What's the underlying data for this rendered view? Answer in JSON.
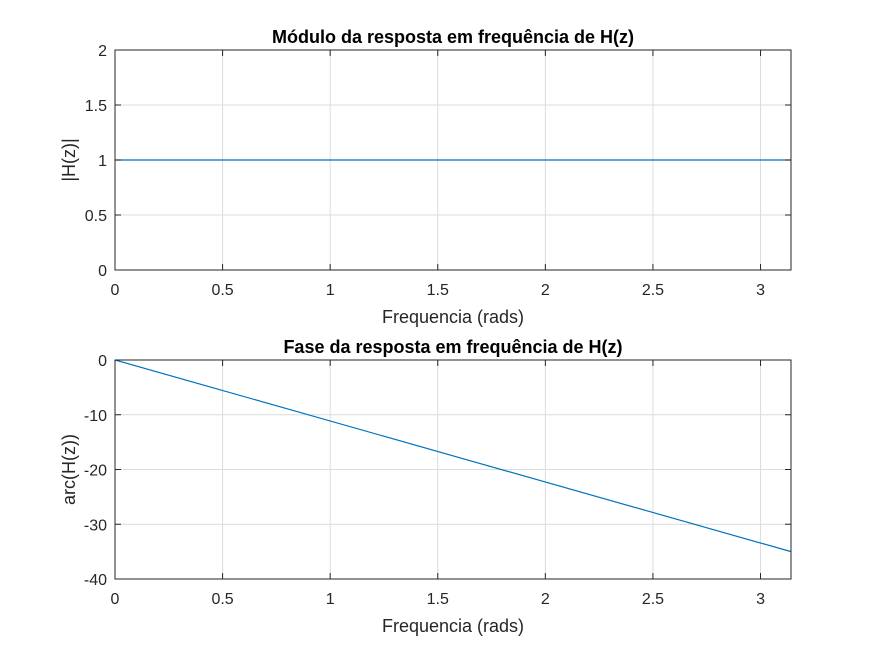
{
  "chart_data": [
    {
      "type": "line",
      "title": "Módulo da resposta em frequência de H(z)",
      "xlabel": "Frequencia (rads)",
      "ylabel": "|H(z)|",
      "xlim": [
        0,
        3.14159
      ],
      "ylim": [
        0,
        2
      ],
      "grid": true,
      "x_ticks": [
        0,
        0.5,
        1,
        1.5,
        2,
        2.5,
        3
      ],
      "x_tick_labels": [
        "0",
        "0.5",
        "1",
        "1.5",
        "2",
        "2.5",
        "3"
      ],
      "y_ticks": [
        0,
        0.5,
        1,
        1.5,
        2
      ],
      "y_tick_labels": [
        "0",
        "0.5",
        "1",
        "1.5",
        "2"
      ],
      "series": [
        {
          "color": "#0072BD",
          "x": [
            0,
            3.14159
          ],
          "y": [
            1,
            1
          ]
        }
      ]
    },
    {
      "type": "line",
      "title": "Fase da resposta em frequência de H(z)",
      "xlabel": "Frequencia (rads)",
      "ylabel": "arc(H(z))",
      "xlim": [
        0,
        3.14159
      ],
      "ylim": [
        -40,
        0
      ],
      "grid": true,
      "x_ticks": [
        0,
        0.5,
        1,
        1.5,
        2,
        2.5,
        3
      ],
      "x_tick_labels": [
        "0",
        "0.5",
        "1",
        "1.5",
        "2",
        "2.5",
        "3"
      ],
      "y_ticks": [
        -40,
        -30,
        -20,
        -10,
        0
      ],
      "y_tick_labels": [
        "-40",
        "-30",
        "-20",
        "-10",
        "0"
      ],
      "series": [
        {
          "color": "#0072BD",
          "x": [
            0,
            3.14159
          ],
          "y": [
            0,
            -35
          ]
        }
      ]
    }
  ]
}
